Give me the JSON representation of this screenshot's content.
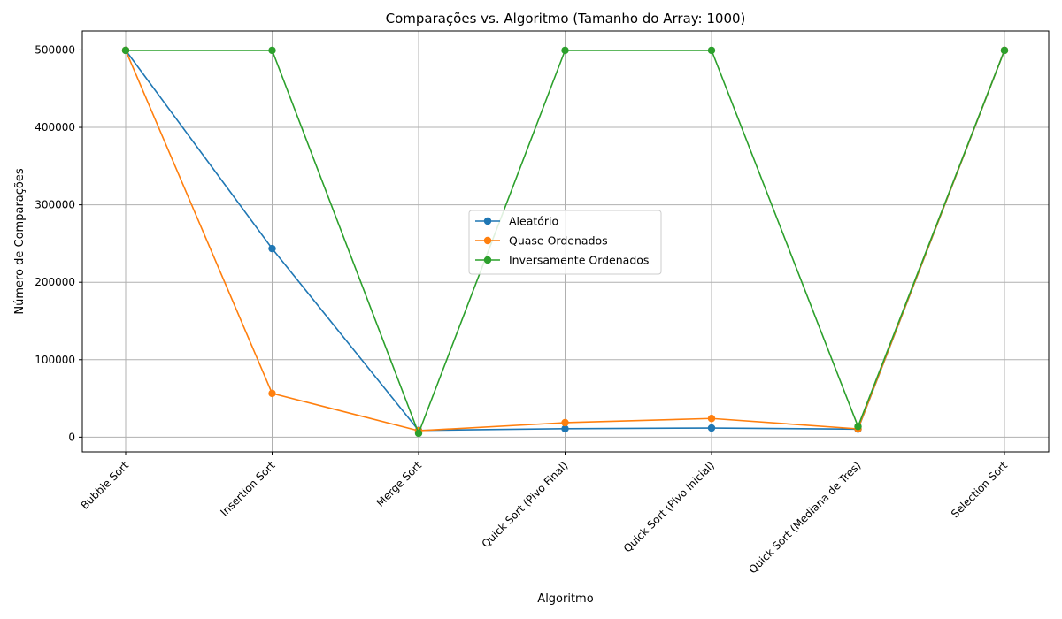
{
  "chart_data": {
    "type": "line",
    "title": "Comparações vs. Algoritmo (Tamanho do Array: 1000)",
    "xlabel": "Algoritmo",
    "ylabel": "Número de Comparações",
    "categories": [
      "Bubble Sort",
      "Insertion Sort",
      "Merge Sort",
      "Quick Sort (Pivo Final)",
      "Quick Sort (Pivo Inicial)",
      "Quick Sort (Mediana de Tres)",
      "Selection Sort"
    ],
    "ylim": [
      -19000,
      524500
    ],
    "yticks": [
      0,
      100000,
      200000,
      300000,
      400000,
      500000
    ],
    "ytick_labels": [
      "0",
      "100000",
      "200000",
      "300000",
      "400000",
      "500000"
    ],
    "grid": true,
    "legend_position": "center",
    "series": [
      {
        "name": "Aleatório",
        "color": "#1f77b4",
        "values": [
          499500,
          243500,
          8700,
          10900,
          11800,
          10300,
          499500
        ]
      },
      {
        "name": "Quase Ordenados",
        "color": "#ff7f0e",
        "values": [
          499500,
          56500,
          8300,
          18700,
          24100,
          10700,
          499500
        ]
      },
      {
        "name": "Inversamente Ordenados",
        "color": "#2ca02c",
        "values": [
          499500,
          499500,
          5000,
          499500,
          499500,
          13800,
          499500
        ]
      }
    ]
  }
}
